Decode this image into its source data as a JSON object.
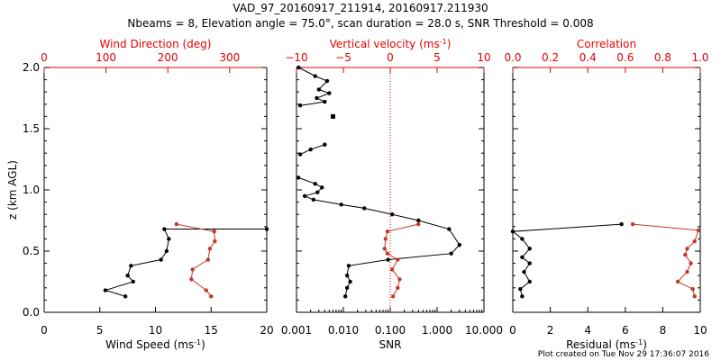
{
  "header": {
    "line1": "VAD_97_20160917_211914, 20160917.211930",
    "line2": "Nbeams = 8, Elevation angle = 75.0°, scan duration = 28.0 s, SNR Threshold = 0.008"
  },
  "footer": {
    "plot_created": "Plot created on Tue Nov 29 17:36:07 2016"
  },
  "colors": {
    "black": "#000000",
    "red": "#c0392b",
    "red_axis": "#e60000"
  },
  "chart_data": [
    {
      "type": "line",
      "panel": "wind",
      "ylabel": "z (km AGL)",
      "ylim": [
        0,
        2.0
      ],
      "yticks": [
        0.0,
        0.5,
        1.0,
        1.5,
        2.0
      ],
      "ytick_labels": [
        "0.0",
        "0.5",
        "1.0",
        "1.5",
        "2.0"
      ],
      "bottom_axis": {
        "label": "Wind Speed (ms",
        "label_sup": "-1",
        "label_end": ")",
        "range": [
          0,
          20
        ],
        "ticks": [
          0,
          5,
          10,
          15,
          20
        ],
        "tick_labels": [
          "0",
          "5",
          "10",
          "15",
          "20"
        ]
      },
      "top_axis": {
        "label": "Wind Direction (deg)",
        "range": [
          0,
          360
        ],
        "ticks": [
          0,
          100,
          200,
          300
        ],
        "tick_labels": [
          "0",
          "100",
          "200",
          "300"
        ]
      },
      "series": [
        {
          "color": "black",
          "axis": "bottom",
          "points": [
            [
              20,
              0.68
            ],
            [
              10.8,
              0.68
            ],
            [
              11.2,
              0.6
            ],
            [
              11.0,
              0.5
            ],
            [
              10.5,
              0.43
            ],
            [
              7.8,
              0.38
            ],
            [
              7.5,
              0.3
            ],
            [
              8.0,
              0.25
            ],
            [
              5.5,
              0.18
            ],
            [
              7.3,
              0.13
            ]
          ]
        },
        {
          "color": "red",
          "axis": "top",
          "points": [
            [
              214,
              0.72
            ],
            [
              275,
              0.66
            ],
            [
              276,
              0.58
            ],
            [
              268,
              0.52
            ],
            [
              265,
              0.43
            ],
            [
              240,
              0.35
            ],
            [
              238,
              0.27
            ],
            [
              262,
              0.18
            ],
            [
              270,
              0.13
            ]
          ]
        }
      ]
    },
    {
      "type": "line",
      "panel": "snr",
      "ylim": [
        0,
        2.0
      ],
      "bottom_axis": {
        "label": "SNR",
        "scale": "log",
        "range": [
          0.001,
          10
        ],
        "ticks": [
          0.001,
          0.01,
          0.1,
          1,
          10
        ],
        "tick_labels": [
          "0.001",
          "0.010",
          "0.100",
          "1.000",
          "10.000"
        ]
      },
      "top_axis": {
        "label": "Vertical velocity (ms",
        "label_sup": "-1",
        "label_end": ")",
        "range": [
          -10,
          10
        ],
        "ticks": [
          -10,
          -5,
          0,
          5,
          10
        ],
        "tick_labels": [
          "−10",
          "−5",
          "0",
          "5",
          "10"
        ]
      },
      "reference_line": {
        "axis": "top",
        "value": 0
      },
      "series": [
        {
          "color": "black",
          "axis": "bottom",
          "segments": [
            [
              [
                0.0011,
                2.0
              ],
              [
                0.0025,
                1.93
              ],
              [
                0.0045,
                1.89
              ],
              [
                0.003,
                1.82
              ],
              [
                0.005,
                1.79
              ],
              [
                0.0027,
                1.75
              ],
              [
                0.004,
                1.72
              ],
              [
                0.0012,
                1.69
              ]
            ],
            [
              [
                0.004,
                1.37
              ],
              [
                0.002,
                1.33
              ],
              [
                0.0012,
                1.29
              ]
            ],
            [
              [
                0.0011,
                1.1
              ],
              [
                0.0025,
                1.05
              ],
              [
                0.0035,
                1.02
              ],
              [
                0.0028,
                0.98
              ],
              [
                0.0015,
                0.95
              ],
              [
                0.0023,
                0.92
              ],
              [
                0.009,
                0.88
              ],
              [
                0.028,
                0.85
              ],
              [
                0.11,
                0.8
              ],
              [
                0.4,
                0.75
              ],
              [
                1.8,
                0.68
              ],
              [
                3.0,
                0.55
              ],
              [
                2.0,
                0.48
              ],
              [
                0.09,
                0.43
              ],
              [
                0.013,
                0.38
              ],
              [
                0.012,
                0.3
              ],
              [
                0.014,
                0.25
              ],
              [
                0.012,
                0.2
              ],
              [
                0.011,
                0.13
              ]
            ]
          ],
          "isolated": [
            [
              0.006,
              1.6
            ]
          ]
        },
        {
          "color": "red",
          "axis": "top",
          "points": [
            [
              3.0,
              0.72
            ],
            [
              -0.3,
              0.66
            ],
            [
              -0.5,
              0.6
            ],
            [
              -0.6,
              0.52
            ],
            [
              -0.3,
              0.48
            ],
            [
              0.8,
              0.43
            ],
            [
              0.2,
              0.35
            ],
            [
              1.0,
              0.27
            ],
            [
              0.8,
              0.2
            ],
            [
              0.3,
              0.13
            ]
          ]
        }
      ]
    },
    {
      "type": "line",
      "panel": "residual",
      "ylim": [
        0,
        2.0
      ],
      "bottom_axis": {
        "label": "Residual (ms",
        "label_sup": "-1",
        "label_end": ")",
        "range": [
          0,
          10
        ],
        "ticks": [
          0,
          2,
          4,
          6,
          8,
          10
        ],
        "tick_labels": [
          "0",
          "2",
          "4",
          "6",
          "8",
          "10"
        ]
      },
      "top_axis": {
        "label": "Correlation",
        "range": [
          0,
          1.0
        ],
        "ticks": [
          0,
          0.2,
          0.4,
          0.6,
          0.8,
          1.0
        ],
        "tick_labels": [
          "0.0",
          "0.2",
          "0.4",
          "0.6",
          "0.8",
          "1.0"
        ]
      },
      "series": [
        {
          "color": "black",
          "axis": "bottom",
          "points": [
            [
              5.8,
              0.72
            ],
            [
              0.0,
              0.66
            ],
            [
              0.5,
              0.6
            ],
            [
              0.9,
              0.52
            ],
            [
              0.5,
              0.45
            ],
            [
              0.9,
              0.4
            ],
            [
              0.6,
              0.33
            ],
            [
              0.9,
              0.25
            ],
            [
              0.4,
              0.19
            ],
            [
              0.5,
              0.13
            ]
          ]
        },
        {
          "color": "red",
          "axis": "top",
          "points": [
            [
              0.64,
              0.72
            ],
            [
              0.99,
              0.67
            ],
            [
              0.97,
              0.58
            ],
            [
              0.93,
              0.52
            ],
            [
              0.92,
              0.47
            ],
            [
              0.95,
              0.4
            ],
            [
              0.93,
              0.33
            ],
            [
              0.88,
              0.25
            ],
            [
              0.96,
              0.19
            ],
            [
              0.97,
              0.13
            ]
          ]
        }
      ]
    }
  ]
}
